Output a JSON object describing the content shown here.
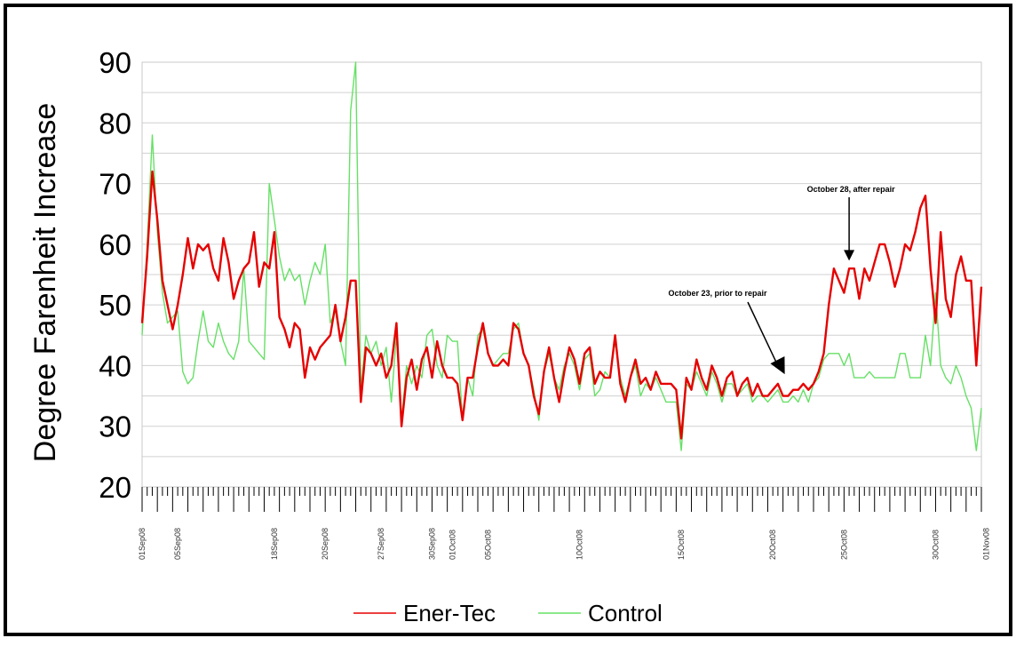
{
  "chart_data": {
    "type": "line",
    "title": "",
    "xlabel": "",
    "ylabel": "Degree Farenheit Increase",
    "ylim": [
      20,
      90
    ],
    "yticks": [
      20,
      30,
      40,
      50,
      60,
      70,
      80,
      90
    ],
    "grid": "horizontal",
    "legend": "bottom",
    "xtick_labels": [
      {
        "label": "01Sep08",
        "index": 0
      },
      {
        "label": "05Sep08",
        "index": 7
      },
      {
        "label": "18Sep08",
        "index": 26
      },
      {
        "label": "20Sep08",
        "index": 36
      },
      {
        "label": "27Sep08",
        "index": 47
      },
      {
        "label": "30Sep08",
        "index": 57
      },
      {
        "label": "01Oct08",
        "index": 61
      },
      {
        "label": "05Oct08",
        "index": 68
      },
      {
        "label": "10Oct08",
        "index": 86
      },
      {
        "label": "15Oct08",
        "index": 106
      },
      {
        "label": "20Oct08",
        "index": 124
      },
      {
        "label": "25Oct08",
        "index": 138
      },
      {
        "label": "30Oct08",
        "index": 156
      },
      {
        "label": "01Nov08",
        "index": 166
      }
    ],
    "series": [
      {
        "name": "Ener-Tec",
        "color": "#e60000",
        "values": [
          47,
          58,
          72,
          64,
          54,
          50,
          46,
          50,
          55,
          61,
          56,
          60,
          59,
          60,
          56,
          54,
          61,
          57,
          51,
          54,
          56,
          57,
          62,
          53,
          57,
          56,
          62,
          48,
          46,
          43,
          47,
          46,
          38,
          43,
          41,
          43,
          44,
          45,
          50,
          44,
          48,
          54,
          54,
          34,
          43,
          42,
          40,
          42,
          38,
          40,
          47,
          30,
          38,
          41,
          36,
          41,
          43,
          38,
          44,
          40,
          38,
          38,
          37,
          31,
          38,
          38,
          43,
          47,
          42,
          40,
          40,
          41,
          40,
          47,
          46,
          42,
          40,
          35,
          32,
          39,
          43,
          38,
          34,
          39,
          43,
          41,
          37,
          42,
          43,
          37,
          39,
          38,
          38,
          45,
          37,
          34,
          38,
          41,
          37,
          38,
          36,
          39,
          37,
          37,
          37,
          36,
          28,
          38,
          36,
          41,
          38,
          36,
          40,
          38,
          35,
          38,
          39,
          35,
          37,
          38,
          35,
          37,
          35,
          35,
          36,
          37,
          35,
          35,
          36,
          36,
          37,
          36,
          37,
          39,
          42,
          50,
          56,
          54,
          52,
          56,
          56,
          51,
          56,
          54,
          57,
          60,
          60,
          57,
          53,
          56,
          60,
          59,
          62,
          66,
          68,
          56,
          47,
          62,
          51,
          48,
          55,
          58,
          54,
          54,
          40,
          53
        ]
      },
      {
        "name": "Control",
        "color": "#66e066",
        "values": [
          45,
          60,
          78,
          62,
          52,
          47,
          48,
          49,
          39,
          37,
          38,
          44,
          49,
          44,
          43,
          47,
          44,
          42,
          41,
          44,
          56,
          44,
          43,
          42,
          41,
          70,
          64,
          58,
          54,
          56,
          54,
          55,
          50,
          54,
          57,
          55,
          60,
          47,
          49,
          44,
          40,
          82,
          90,
          36,
          45,
          42,
          44,
          40,
          43,
          34,
          45,
          31,
          40,
          37,
          40,
          38,
          45,
          46,
          40,
          38,
          45,
          44,
          44,
          31,
          38,
          35,
          45,
          46,
          42,
          40,
          41,
          42,
          42,
          46,
          47,
          42,
          40,
          36,
          31,
          39,
          42,
          38,
          36,
          40,
          42,
          40,
          36,
          41,
          42,
          35,
          36,
          39,
          38,
          44,
          38,
          35,
          38,
          40,
          35,
          37,
          36,
          38,
          36,
          34,
          34,
          34,
          26,
          37,
          36,
          39,
          37,
          35,
          39,
          37,
          34,
          37,
          37,
          35,
          36,
          37,
          34,
          35,
          35,
          34,
          35,
          36,
          34,
          34,
          35,
          34,
          36,
          34,
          37,
          38,
          41,
          42,
          42,
          42,
          40,
          42,
          38,
          38,
          38,
          39,
          38,
          38,
          38,
          38,
          38,
          42,
          42,
          38,
          38,
          38,
          45,
          40,
          52,
          40,
          38,
          37,
          40,
          38,
          35,
          33,
          26,
          33
        ]
      }
    ],
    "annotations": [
      {
        "text": "October 28, after repair",
        "target_index": 139,
        "target_value": 57
      },
      {
        "text": "October 23, prior to repair",
        "target_index": 126,
        "target_value": 38
      }
    ]
  }
}
